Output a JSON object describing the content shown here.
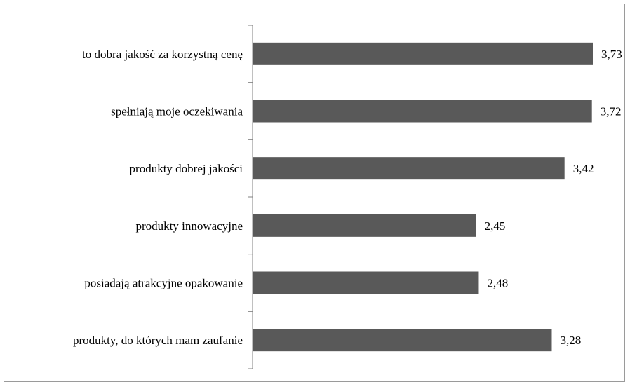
{
  "chart_data": {
    "type": "bar",
    "orientation": "horizontal",
    "categories": [
      "to dobra jakość za korzystną cenę",
      "spełniają moje oczekiwania",
      "produkty dobrej jakości",
      "produkty innowacyjne",
      "posiadają atrakcyjne opakowanie",
      "produkty, do których mam zaufanie"
    ],
    "values": [
      3.73,
      3.72,
      3.42,
      2.45,
      2.48,
      3.28
    ],
    "value_labels": [
      "3,73",
      "3,72",
      "3,42",
      "2,45",
      "2,48",
      "3,28"
    ],
    "title": "",
    "xlabel": "",
    "ylabel": "",
    "xlim": [
      0,
      3.73
    ],
    "grid": false,
    "legend": "none",
    "bar_color": "#595959"
  }
}
